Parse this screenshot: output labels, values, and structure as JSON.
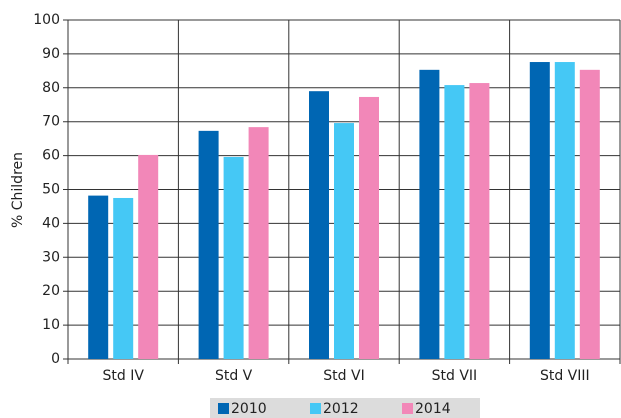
{
  "chart_data": {
    "type": "bar",
    "y_label": "% Children",
    "categories": [
      "Std IV",
      "Std V",
      "Std VI",
      "Std VII",
      "Std VIII"
    ],
    "series": [
      {
        "name": "2010",
        "color": "#0066b3",
        "values": [
          48.2,
          67.3,
          79,
          85.3,
          87.6
        ]
      },
      {
        "name": "2012",
        "color": "#45c8f5",
        "values": [
          47.5,
          59.6,
          69.6,
          80.8,
          87.6
        ]
      },
      {
        "name": "2014",
        "color": "#f287b8",
        "values": [
          60.2,
          68.4,
          77.3,
          81.4,
          85.3
        ]
      }
    ],
    "ylim": [
      0,
      100
    ],
    "yticks": [
      0,
      10,
      20,
      30,
      40,
      50,
      60,
      70,
      80,
      90,
      100
    ],
    "grid": true,
    "legend": "bottom"
  }
}
